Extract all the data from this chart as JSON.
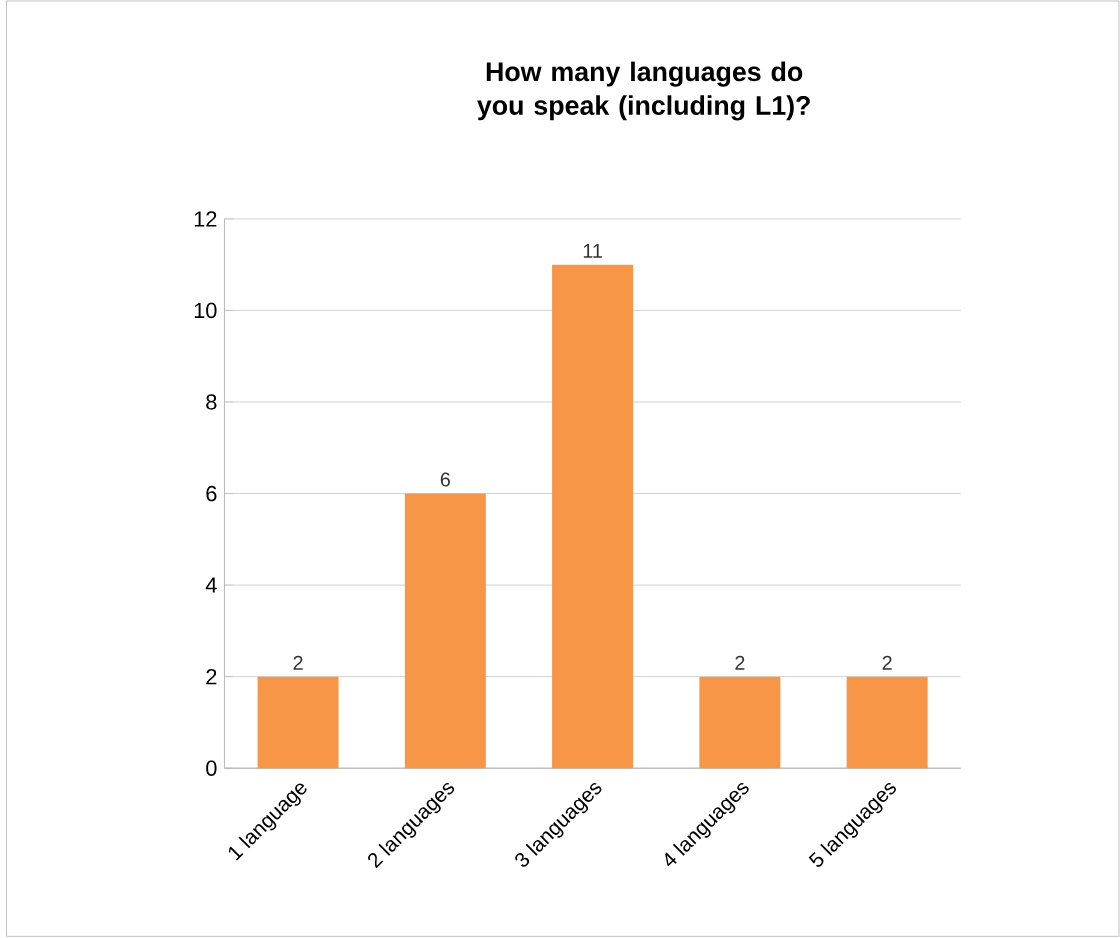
{
  "chart_data": {
    "type": "bar",
    "title": "How many languages do you speak (including L1)?",
    "categories": [
      "1 language",
      "2 languages",
      "3 languages",
      "4 languages",
      "5 languages"
    ],
    "values": [
      2,
      6,
      11,
      2,
      2
    ],
    "color": "#f79646",
    "ylim": [
      0,
      12
    ],
    "yticks": [
      0,
      2,
      4,
      6,
      8,
      10,
      12
    ],
    "grid": "y",
    "data_labels": true
  }
}
